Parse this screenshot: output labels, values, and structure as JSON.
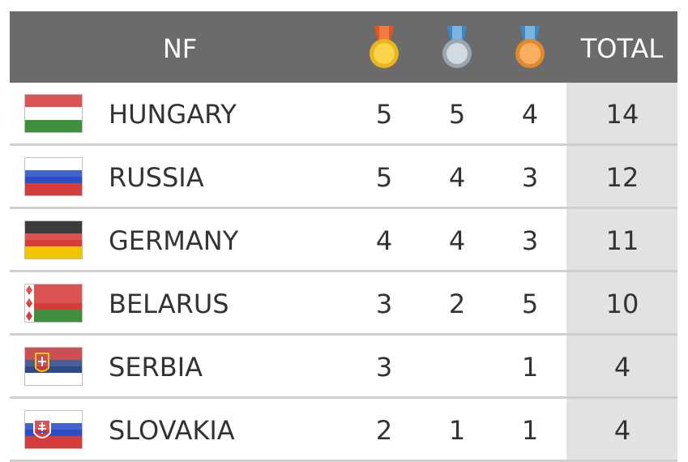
{
  "table": {
    "header": {
      "nf": "NF",
      "total": "TOTAL"
    },
    "rows": [
      {
        "country": "HUNGARY",
        "gold": 5,
        "silver": 5,
        "bronze": 4,
        "total": 14
      },
      {
        "country": "RUSSIA",
        "gold": 5,
        "silver": 4,
        "bronze": 3,
        "total": 12
      },
      {
        "country": "GERMANY",
        "gold": 4,
        "silver": 4,
        "bronze": 3,
        "total": 11
      },
      {
        "country": "BELARUS",
        "gold": 3,
        "silver": 2,
        "bronze": 5,
        "total": 10
      },
      {
        "country": "SERBIA",
        "gold": 3,
        "silver": null,
        "bronze": 1,
        "total": 4
      },
      {
        "country": "SLOVAKIA",
        "gold": 2,
        "silver": 1,
        "bronze": 1,
        "total": 4
      }
    ]
  }
}
